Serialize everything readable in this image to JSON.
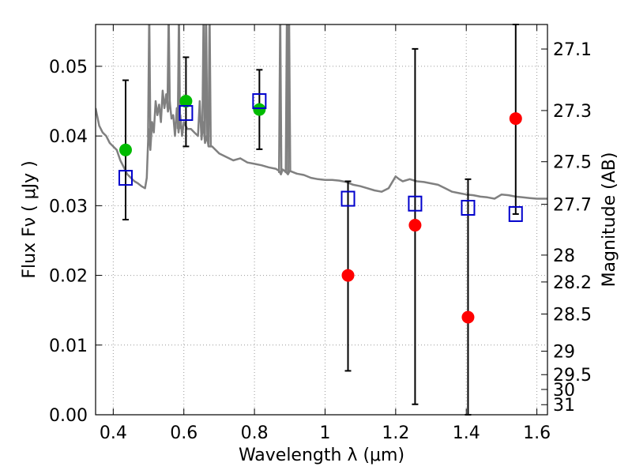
{
  "chart_data": {
    "type": "scatter",
    "title": "",
    "xlabel": "Wavelength  λ (μm)",
    "ylabel": "Flux  Fν  ( μJy )",
    "y2label": "Magnitude (AB)",
    "xlim": [
      0.35,
      1.63
    ],
    "ylim": [
      0.0,
      0.056
    ],
    "grid": true,
    "x_ticks": [
      {
        "value": 0.4,
        "label": "0.4"
      },
      {
        "value": 0.6,
        "label": "0.6"
      },
      {
        "value": 0.8,
        "label": "0.8"
      },
      {
        "value": 1.0,
        "label": "1"
      },
      {
        "value": 1.2,
        "label": "1.2"
      },
      {
        "value": 1.4,
        "label": "1.4"
      },
      {
        "value": 1.6,
        "label": "1.6"
      }
    ],
    "y_ticks": [
      {
        "value": 0.0,
        "label": "0.00"
      },
      {
        "value": 0.01,
        "label": "0.01"
      },
      {
        "value": 0.02,
        "label": "0.02"
      },
      {
        "value": 0.03,
        "label": "0.03"
      },
      {
        "value": 0.04,
        "label": "0.04"
      },
      {
        "value": 0.05,
        "label": "0.05"
      }
    ],
    "y2_ticks": [
      {
        "value": 27.1,
        "label": "27.1"
      },
      {
        "value": 27.3,
        "label": "27.3"
      },
      {
        "value": 27.5,
        "label": "27.5"
      },
      {
        "value": 27.7,
        "label": "27.7"
      },
      {
        "value": 28.0,
        "label": "28"
      },
      {
        "value": 28.2,
        "label": "28.2"
      },
      {
        "value": 28.5,
        "label": "28.5"
      },
      {
        "value": 29.0,
        "label": "29"
      },
      {
        "value": 29.5,
        "label": "29.5"
      },
      {
        "value": 30.0,
        "label": "30"
      },
      {
        "value": 31.0,
        "label": "31"
      }
    ],
    "colors": {
      "model": "#808080",
      "detections": "#00bb00",
      "non_detections": "#ff0000",
      "model_photometry": "#0000cc",
      "errorbar": "#000000",
      "grid": "#999999"
    },
    "model_spectrum": {
      "x": [
        0.35,
        0.36,
        0.37,
        0.38,
        0.39,
        0.4,
        0.41,
        0.42,
        0.43,
        0.44,
        0.45,
        0.46,
        0.47,
        0.48,
        0.49,
        0.495,
        0.5,
        0.505,
        0.51,
        0.515,
        0.52,
        0.525,
        0.53,
        0.535,
        0.54,
        0.545,
        0.55,
        0.555,
        0.56,
        0.565,
        0.57,
        0.575,
        0.58,
        0.585,
        0.59,
        0.595,
        0.6,
        0.61,
        0.62,
        0.63,
        0.64,
        0.645,
        0.65,
        0.655,
        0.66,
        0.665,
        0.67,
        0.68,
        0.69,
        0.7,
        0.72,
        0.74,
        0.76,
        0.78,
        0.8,
        0.82,
        0.84,
        0.86,
        0.87,
        0.875,
        0.88,
        0.89,
        0.895,
        0.9,
        0.92,
        0.94,
        0.96,
        0.98,
        1.0,
        1.02,
        1.04,
        1.06,
        1.08,
        1.1,
        1.12,
        1.14,
        1.16,
        1.18,
        1.2,
        1.21,
        1.22,
        1.24,
        1.26,
        1.28,
        1.3,
        1.32,
        1.34,
        1.36,
        1.38,
        1.4,
        1.42,
        1.44,
        1.46,
        1.48,
        1.5,
        1.52,
        1.54,
        1.56,
        1.58,
        1.6,
        1.63
      ],
      "y": [
        0.044,
        0.0415,
        0.0405,
        0.04,
        0.039,
        0.0385,
        0.038,
        0.0365,
        0.0355,
        0.0345,
        0.034,
        0.0335,
        0.0332,
        0.0328,
        0.0325,
        0.034,
        0.041,
        0.038,
        0.042,
        0.0405,
        0.045,
        0.043,
        0.0445,
        0.042,
        0.0465,
        0.044,
        0.046,
        0.0435,
        0.045,
        0.0425,
        0.043,
        0.04,
        0.044,
        0.0405,
        0.043,
        0.04,
        0.042,
        0.041,
        0.041,
        0.0405,
        0.04,
        0.045,
        0.0395,
        0.042,
        0.039,
        0.04,
        0.0385,
        0.0385,
        0.038,
        0.0375,
        0.037,
        0.0365,
        0.0368,
        0.0362,
        0.036,
        0.0358,
        0.0355,
        0.0353,
        0.035,
        0.0345,
        0.0352,
        0.0348,
        0.0345,
        0.035,
        0.0346,
        0.0344,
        0.034,
        0.0338,
        0.0337,
        0.0337,
        0.0336,
        0.0334,
        0.033,
        0.0328,
        0.0325,
        0.0322,
        0.032,
        0.0325,
        0.0342,
        0.0338,
        0.0335,
        0.0338,
        0.0335,
        0.0334,
        0.0332,
        0.033,
        0.0325,
        0.032,
        0.0318,
        0.0316,
        0.0315,
        0.0313,
        0.0312,
        0.031,
        0.0316,
        0.0315,
        0.0313,
        0.0312,
        0.0311,
        0.031,
        0.031
      ],
      "emission_spikes": [
        {
          "x": 0.502,
          "y": 0.058
        },
        {
          "x": 0.557,
          "y": 0.058
        },
        {
          "x": 0.586,
          "y": 0.058
        },
        {
          "x": 0.656,
          "y": 0.058
        },
        {
          "x": 0.663,
          "y": 0.058
        },
        {
          "x": 0.673,
          "y": 0.058
        },
        {
          "x": 0.873,
          "y": 0.058
        },
        {
          "x": 0.892,
          "y": 0.058
        },
        {
          "x": 0.898,
          "y": 0.058
        }
      ]
    },
    "series": [
      {
        "marker": "circle",
        "color": "#00bb00",
        "points": [
          {
            "x": 0.435,
            "y": 0.038
          },
          {
            "x": 0.606,
            "y": 0.045
          },
          {
            "x": 0.814,
            "y": 0.0438
          }
        ]
      },
      {
        "marker": "circle",
        "color": "#ff0000",
        "points": [
          {
            "x": 1.065,
            "y": 0.02
          },
          {
            "x": 1.255,
            "y": 0.0272
          },
          {
            "x": 1.405,
            "y": 0.014
          },
          {
            "x": 1.54,
            "y": 0.0425
          }
        ]
      },
      {
        "marker": "square-open",
        "color": "#0000cc",
        "points": [
          {
            "x": 0.435,
            "y": 0.034
          },
          {
            "x": 0.606,
            "y": 0.0433
          },
          {
            "x": 0.814,
            "y": 0.045
          },
          {
            "x": 1.065,
            "y": 0.031
          },
          {
            "x": 1.255,
            "y": 0.0303
          },
          {
            "x": 1.405,
            "y": 0.0297
          },
          {
            "x": 1.54,
            "y": 0.0288
          }
        ]
      }
    ],
    "error_bars": [
      {
        "x": 0.435,
        "low": 0.028,
        "high": 0.048
      },
      {
        "x": 0.606,
        "low": 0.0385,
        "high": 0.0513
      },
      {
        "x": 0.814,
        "low": 0.0381,
        "high": 0.0495
      },
      {
        "x": 1.065,
        "low": 0.0063,
        "high": 0.0335
      },
      {
        "x": 1.255,
        "low": 0.0015,
        "high": 0.0525
      },
      {
        "x": 1.405,
        "low": 0.0,
        "high": 0.0338
      },
      {
        "x": 1.54,
        "low": 0.0288,
        "high": 0.056
      }
    ]
  }
}
